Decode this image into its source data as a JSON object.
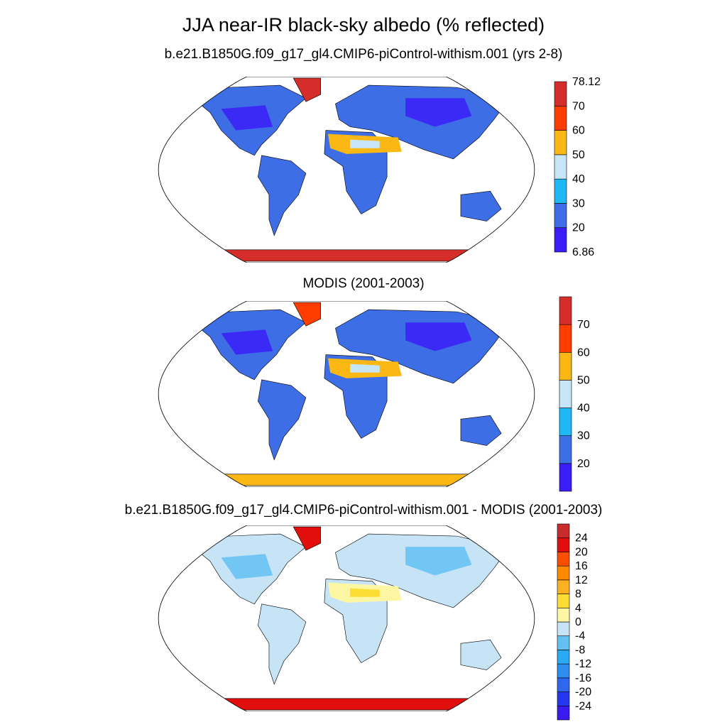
{
  "title": "JJA near-IR black-sky albedo (% reflected)",
  "panels": [
    {
      "title": "b.e21.B1850G.f09_g17_gl4.CMIP6-piControl-withism.001 (yrs 2-8)",
      "colorbar": {
        "colors": [
          "#3b1ef7",
          "#3e6ee6",
          "#1eb8f5",
          "#c6e5f7",
          "#fbb814",
          "#ff3d00",
          "#d52d2a"
        ],
        "labels": [
          "78.12",
          "70",
          "60",
          "50",
          "40",
          "30",
          "20",
          "6.86"
        ]
      }
    },
    {
      "title": "MODIS (2001-2003)",
      "colorbar": {
        "colors": [
          "#3b1ef7",
          "#3e6ee6",
          "#1eb8f5",
          "#c6e5f7",
          "#fbb814",
          "#ff3d00",
          "#d52d2a"
        ],
        "labels": [
          "70",
          "60",
          "50",
          "40",
          "30",
          "20"
        ]
      }
    },
    {
      "title": "b.e21.B1850G.f09_g17_gl4.CMIP6-piControl-withism.001 - MODIS (2001-2003)",
      "colorbar": {
        "colors": [
          "#3a1af0",
          "#2438f0",
          "#2f68ee",
          "#2f8df0",
          "#2aaaf5",
          "#63c1f2",
          "#c6e4f6",
          "#fdf7a4",
          "#fbdd33",
          "#fbb122",
          "#ff8a00",
          "#fb4f00",
          "#e20d0d",
          "#c92c2c"
        ],
        "labels": [
          "24",
          "20",
          "16",
          "12",
          "8",
          "4",
          "0",
          "-4",
          "-8",
          "-12",
          "-16",
          "-20",
          "-24"
        ]
      }
    }
  ]
}
